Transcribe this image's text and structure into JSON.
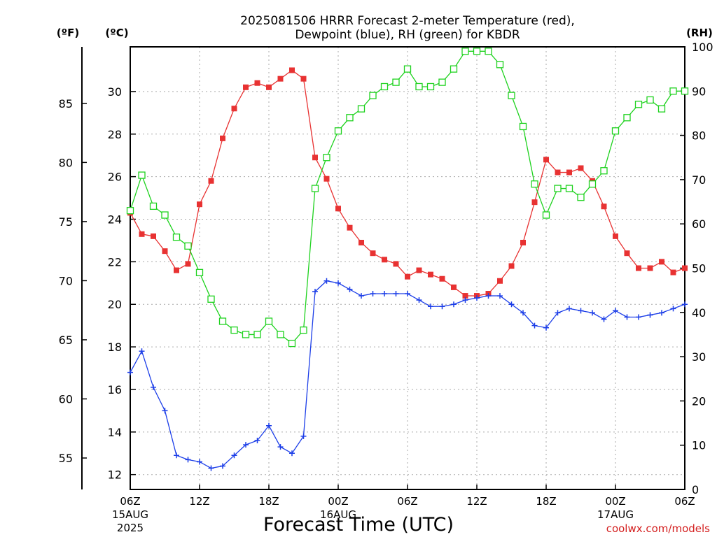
{
  "chart_data": {
    "type": "line",
    "title_line1": "2025081506 HRRR Forecast 2-meter Temperature (red),",
    "title_line2": "Dewpoint (blue), RH (green) for KBDR",
    "xlabel": "Forecast Time (UTC)",
    "credit": "coolwx.com/models",
    "left_unit_f": "(ºF)",
    "left_unit_c": "(ºC)",
    "right_unit": "(RH)",
    "xlim": [
      0,
      48
    ],
    "celsius_ylim": [
      11.3,
      32.1
    ],
    "rh_ylim": [
      0,
      100
    ],
    "x_ticks": [
      {
        "x": 0,
        "label": "06Z",
        "sub1": "15AUG",
        "sub2": "2025"
      },
      {
        "x": 6,
        "label": "12Z",
        "sub1": "",
        "sub2": ""
      },
      {
        "x": 12,
        "label": "18Z",
        "sub1": "",
        "sub2": ""
      },
      {
        "x": 18,
        "label": "00Z",
        "sub1": "16AUG",
        "sub2": ""
      },
      {
        "x": 24,
        "label": "06Z",
        "sub1": "",
        "sub2": ""
      },
      {
        "x": 30,
        "label": "12Z",
        "sub1": "",
        "sub2": ""
      },
      {
        "x": 36,
        "label": "18Z",
        "sub1": "",
        "sub2": ""
      },
      {
        "x": 42,
        "label": "00Z",
        "sub1": "17AUG",
        "sub2": ""
      },
      {
        "x": 48,
        "label": "06Z",
        "sub1": "",
        "sub2": ""
      }
    ],
    "celsius_ticks": [
      12,
      14,
      16,
      18,
      20,
      22,
      24,
      26,
      28,
      30
    ],
    "fahrenheit_ticks": [
      55,
      60,
      65,
      70,
      75,
      80,
      85
    ],
    "rh_ticks": [
      0,
      10,
      20,
      30,
      40,
      50,
      60,
      70,
      80,
      90,
      100
    ],
    "series": [
      {
        "name": "Temperature",
        "color": "#e83232",
        "marker": "filled-square",
        "axis": "celsius",
        "values": [
          24.3,
          23.3,
          23.2,
          22.5,
          21.6,
          21.9,
          24.7,
          25.8,
          27.8,
          29.2,
          30.2,
          30.4,
          30.2,
          30.6,
          31.0,
          30.6,
          26.9,
          25.9,
          24.5,
          23.6,
          22.9,
          22.4,
          22.1,
          21.9,
          21.3,
          21.6,
          21.4,
          21.2,
          20.8,
          20.4,
          20.4,
          20.5,
          21.1,
          21.8,
          22.9,
          24.8,
          26.8,
          26.2,
          26.2,
          26.4,
          25.8,
          24.6,
          23.2,
          22.4,
          21.7,
          21.7,
          22.0,
          21.5,
          21.7
        ]
      },
      {
        "name": "Dewpoint",
        "color": "#1c3ee8",
        "marker": "plus",
        "axis": "celsius",
        "values": [
          16.8,
          17.8,
          16.1,
          15.0,
          12.9,
          12.7,
          12.6,
          12.3,
          12.4,
          12.9,
          13.4,
          13.6,
          14.3,
          13.3,
          13.0,
          13.8,
          20.6,
          21.1,
          21.0,
          20.7,
          20.4,
          20.5,
          20.5,
          20.5,
          20.5,
          20.2,
          19.9,
          19.9,
          20.0,
          20.2,
          20.3,
          20.4,
          20.4,
          20.0,
          19.6,
          19.0,
          18.9,
          19.6,
          19.8,
          19.7,
          19.6,
          19.3,
          19.7,
          19.4,
          19.4,
          19.5,
          19.6,
          19.8,
          20.0
        ]
      },
      {
        "name": "RH",
        "color": "#1ed21e",
        "marker": "open-square",
        "axis": "rh",
        "values": [
          63,
          71,
          64,
          62,
          57,
          55,
          49,
          43,
          38,
          36,
          35,
          35,
          38,
          35,
          33,
          36,
          68,
          75,
          81,
          84,
          86,
          89,
          91,
          92,
          95,
          91,
          91,
          92,
          95,
          99,
          99,
          99,
          96,
          89,
          82,
          69,
          62,
          68,
          68,
          66,
          69,
          72,
          81,
          84,
          87,
          88,
          86,
          90,
          90
        ]
      }
    ]
  }
}
